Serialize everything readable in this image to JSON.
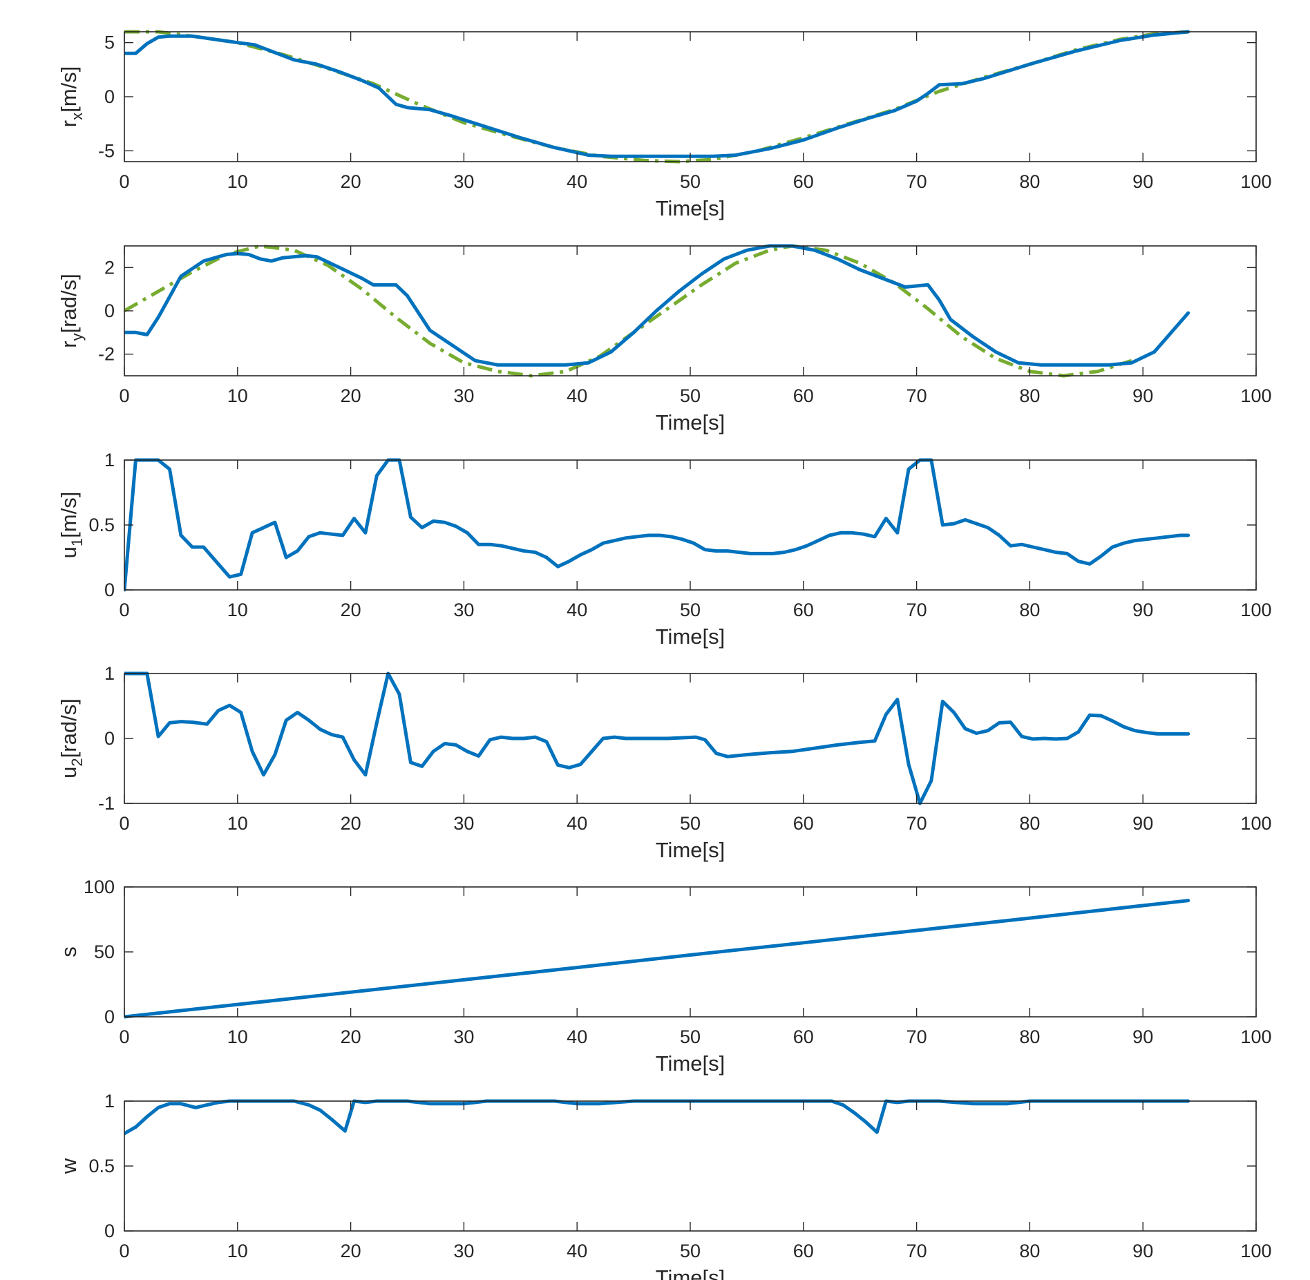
{
  "chart_data": [
    {
      "type": "line",
      "ylabel": {
        "base": "r",
        "sub": "x",
        "unit": "[m/s]"
      },
      "xlabel": "Time[s]",
      "xlim": [
        0,
        100
      ],
      "ylim": [
        -6,
        6
      ],
      "xticks": [
        0,
        10,
        20,
        30,
        40,
        50,
        60,
        70,
        80,
        90,
        100
      ],
      "yticks": [
        -5,
        0,
        5
      ],
      "colors": {
        "actual": "#0072BD",
        "reference": "#77AC30"
      },
      "series": [
        {
          "role": "actual",
          "style": "solid",
          "x": [
            0,
            1,
            2,
            3,
            4,
            6,
            8,
            10,
            11.5,
            13,
            15,
            17,
            19,
            21,
            22.5,
            24,
            25,
            27,
            29,
            32,
            35,
            38,
            41,
            43,
            46,
            49,
            52,
            54,
            57,
            60,
            63,
            66,
            68,
            70,
            71,
            72,
            74,
            76,
            80,
            84,
            88,
            91,
            94
          ],
          "y": [
            4,
            4,
            4.9,
            5.5,
            5.6,
            5.6,
            5.3,
            5.0,
            4.8,
            4.2,
            3.4,
            3.0,
            2.3,
            1.5,
            0.8,
            -0.7,
            -1.0,
            -1.2,
            -1.8,
            -2.8,
            -3.8,
            -4.7,
            -5.4,
            -5.5,
            -5.5,
            -5.5,
            -5.5,
            -5.4,
            -4.8,
            -4.0,
            -2.9,
            -1.9,
            -1.3,
            -0.4,
            0.3,
            1.1,
            1.2,
            1.7,
            3.0,
            4.2,
            5.2,
            5.7,
            6.0
          ]
        },
        {
          "role": "reference",
          "style": "dash-dot",
          "x": [
            0,
            3,
            6,
            10,
            14,
            18,
            22,
            26,
            30,
            34,
            38,
            42,
            46,
            49,
            52,
            56,
            60,
            64,
            68,
            72,
            76,
            80,
            84,
            88,
            91,
            94
          ],
          "y": [
            6,
            6,
            5.6,
            5.0,
            3.9,
            2.6,
            1.2,
            -0.7,
            -2.4,
            -3.6,
            -4.7,
            -5.5,
            -5.9,
            -6.0,
            -5.8,
            -5.0,
            -3.8,
            -2.5,
            -1.2,
            0.5,
            1.8,
            3.0,
            4.3,
            5.3,
            5.8,
            6.0
          ]
        }
      ]
    },
    {
      "type": "line",
      "ylabel": {
        "base": "r",
        "sub": "y",
        "unit": "[rad/s]"
      },
      "xlabel": "Time[s]",
      "xlim": [
        0,
        100
      ],
      "ylim": [
        -3,
        3
      ],
      "xticks": [
        0,
        10,
        20,
        30,
        40,
        50,
        60,
        70,
        80,
        90,
        100
      ],
      "yticks": [
        -2,
        0,
        2
      ],
      "colors": {
        "actual": "#0072BD",
        "reference": "#77AC30"
      },
      "series": [
        {
          "role": "actual",
          "style": "solid",
          "x": [
            0,
            1,
            2,
            3,
            5,
            7,
            9,
            10,
            11,
            12,
            13,
            14,
            16,
            17,
            19,
            21,
            22,
            23,
            24,
            25,
            27,
            29,
            31,
            33,
            35,
            37,
            39,
            41,
            43,
            45,
            47,
            49,
            51,
            53,
            55,
            57,
            59,
            61,
            63,
            65,
            67,
            69,
            71,
            72,
            73,
            75,
            77,
            79,
            81,
            83,
            85,
            87,
            89,
            91,
            94
          ],
          "y": [
            -1,
            -1,
            -1.1,
            -0.3,
            1.6,
            2.3,
            2.6,
            2.65,
            2.6,
            2.4,
            2.3,
            2.45,
            2.55,
            2.5,
            2.0,
            1.5,
            1.2,
            1.2,
            1.2,
            0.7,
            -0.9,
            -1.6,
            -2.3,
            -2.5,
            -2.5,
            -2.5,
            -2.5,
            -2.4,
            -1.9,
            -1.0,
            0.0,
            0.9,
            1.7,
            2.4,
            2.8,
            3.0,
            3.0,
            2.8,
            2.4,
            1.9,
            1.5,
            1.1,
            1.2,
            0.5,
            -0.4,
            -1.2,
            -1.9,
            -2.4,
            -2.5,
            -2.5,
            -2.5,
            -2.5,
            -2.4,
            -1.9,
            -0.1
          ]
        },
        {
          "role": "reference",
          "style": "dash-dot",
          "x": [
            0,
            3,
            6,
            9,
            12,
            15,
            18,
            21,
            24,
            27,
            30,
            33,
            36,
            39,
            42,
            45,
            48,
            51,
            54,
            57,
            59,
            62,
            65,
            68,
            71,
            74,
            77,
            80,
            83,
            86,
            89
          ],
          "y": [
            0,
            0.9,
            1.8,
            2.6,
            3.0,
            2.8,
            2.1,
            1.0,
            -0.3,
            -1.5,
            -2.4,
            -2.8,
            -3.0,
            -2.8,
            -2.1,
            -1.0,
            0.1,
            1.2,
            2.2,
            2.8,
            3.0,
            2.8,
            2.2,
            1.3,
            0.1,
            -1.2,
            -2.2,
            -2.8,
            -3.0,
            -2.8,
            -2.3
          ]
        }
      ]
    },
    {
      "type": "line",
      "ylabel": {
        "base": "u",
        "sub": "1",
        "unit": "[m/s]"
      },
      "xlabel": "Time[s]",
      "xlim": [
        0,
        100
      ],
      "ylim": [
        0,
        1
      ],
      "xticks": [
        0,
        10,
        20,
        30,
        40,
        50,
        60,
        70,
        80,
        90,
        100
      ],
      "yticks": [
        0,
        0.5,
        1
      ],
      "colors": {
        "actual": "#0072BD"
      },
      "series": [
        {
          "role": "actual",
          "style": "solid",
          "x": [
            0,
            1,
            2,
            3,
            4,
            5,
            6,
            7,
            8,
            9.3,
            10.3,
            11.3,
            12.3,
            13.3,
            14.3,
            15.3,
            16.3,
            17.3,
            18.3,
            19.3,
            20.3,
            21.3,
            22.3,
            23.3,
            24.3,
            25.3,
            26.3,
            27.3,
            28.3,
            29.3,
            30.3,
            31.3,
            32.3,
            33.3,
            34.3,
            35.3,
            36.3,
            37.3,
            38.3,
            39.3,
            40.3,
            41.3,
            42.3,
            43.3,
            44.3,
            45.3,
            46.3,
            47.3,
            48.3,
            49.3,
            50.3,
            51.3,
            52.3,
            53.3,
            54.3,
            55.3,
            56.3,
            57.3,
            58.3,
            59.3,
            60.3,
            61.3,
            62.3,
            63.3,
            64.3,
            65.3,
            66.3,
            67.3,
            68.3,
            69.3,
            70.3,
            71.3,
            72.3,
            73.3,
            74.3,
            75.3,
            76.3,
            77.3,
            78.3,
            79.3,
            80.3,
            81.3,
            82.3,
            83.3,
            84.3,
            85.3,
            86.3,
            87.3,
            88.3,
            89.3,
            90.3,
            91.3,
            92.3,
            93.3,
            94
          ],
          "y": [
            0,
            1,
            1,
            1,
            0.93,
            0.42,
            0.33,
            0.33,
            0.23,
            0.1,
            0.12,
            0.44,
            0.48,
            0.52,
            0.25,
            0.3,
            0.41,
            0.44,
            0.43,
            0.42,
            0.55,
            0.44,
            0.88,
            1,
            1,
            0.56,
            0.48,
            0.53,
            0.52,
            0.49,
            0.44,
            0.35,
            0.35,
            0.34,
            0.32,
            0.3,
            0.29,
            0.25,
            0.18,
            0.22,
            0.27,
            0.31,
            0.36,
            0.38,
            0.4,
            0.41,
            0.42,
            0.42,
            0.41,
            0.39,
            0.36,
            0.31,
            0.3,
            0.3,
            0.29,
            0.28,
            0.28,
            0.28,
            0.29,
            0.31,
            0.34,
            0.38,
            0.42,
            0.44,
            0.44,
            0.43,
            0.41,
            0.55,
            0.44,
            0.93,
            1,
            1,
            0.5,
            0.51,
            0.54,
            0.51,
            0.48,
            0.42,
            0.34,
            0.35,
            0.33,
            0.31,
            0.29,
            0.28,
            0.22,
            0.2,
            0.26,
            0.33,
            0.36,
            0.38,
            0.39,
            0.4,
            0.41,
            0.42,
            0.42
          ]
        }
      ]
    },
    {
      "type": "line",
      "ylabel": {
        "base": "u",
        "sub": "2",
        "unit": "[rad/s]"
      },
      "xlabel": "Time[s]",
      "xlim": [
        0,
        100
      ],
      "ylim": [
        -1,
        1
      ],
      "xticks": [
        0,
        10,
        20,
        30,
        40,
        50,
        60,
        70,
        80,
        90,
        100
      ],
      "yticks": [
        -1,
        0,
        1
      ],
      "colors": {
        "actual": "#0072BD"
      },
      "series": [
        {
          "role": "actual",
          "style": "solid",
          "x": [
            0,
            1,
            2,
            3,
            4,
            5,
            6,
            7.3,
            8.3,
            9.3,
            10.3,
            11.3,
            12.3,
            13.3,
            14.3,
            15.3,
            16.3,
            17.3,
            18.3,
            19.3,
            20.3,
            21.3,
            22.3,
            23.3,
            24.3,
            25.3,
            26.3,
            27.3,
            28.3,
            29.3,
            30.3,
            31.3,
            32.3,
            33.3,
            34.3,
            35.3,
            36.3,
            37.3,
            38.3,
            39.3,
            40.3,
            41.3,
            42.3,
            43.3,
            44.3,
            48,
            50.5,
            51.3,
            52.3,
            53.3,
            55,
            57,
            59,
            61,
            63,
            65,
            66.3,
            67.3,
            68.3,
            69.3,
            70.3,
            71.3,
            72.3,
            73.3,
            74.3,
            75.3,
            76.3,
            77.3,
            78.3,
            79.3,
            80.3,
            81.3,
            82.3,
            83.3,
            84.3,
            85.3,
            86.3,
            87.3,
            88.3,
            89.3,
            90.3,
            91.3,
            92.3,
            93.3,
            94
          ],
          "y": [
            1,
            1,
            1,
            0.03,
            0.24,
            0.26,
            0.25,
            0.22,
            0.43,
            0.51,
            0.4,
            -0.2,
            -0.56,
            -0.25,
            0.28,
            0.4,
            0.28,
            0.14,
            0.06,
            0.02,
            -0.33,
            -0.56,
            0.24,
            1,
            0.68,
            -0.37,
            -0.43,
            -0.2,
            -0.08,
            -0.1,
            -0.2,
            -0.27,
            -0.02,
            0.02,
            0.0,
            0.0,
            0.02,
            -0.05,
            -0.41,
            -0.45,
            -0.4,
            -0.2,
            0.0,
            0.02,
            0.0,
            0.0,
            0.02,
            -0.02,
            -0.23,
            -0.28,
            -0.25,
            -0.22,
            -0.2,
            -0.15,
            -0.1,
            -0.06,
            -0.04,
            0.37,
            0.6,
            -0.4,
            -1,
            -0.65,
            0.57,
            0.4,
            0.15,
            0.08,
            0.12,
            0.24,
            0.25,
            0.03,
            -0.01,
            0.0,
            -0.01,
            0.0,
            0.1,
            0.36,
            0.35,
            0.27,
            0.18,
            0.12,
            0.09,
            0.07,
            0.07,
            0.07,
            0.07
          ]
        }
      ]
    },
    {
      "type": "line",
      "ylabel": {
        "base": "s",
        "sub": "",
        "unit": ""
      },
      "xlabel": "Time[s]",
      "xlim": [
        0,
        100
      ],
      "ylim": [
        0,
        100
      ],
      "xticks": [
        0,
        10,
        20,
        30,
        40,
        50,
        60,
        70,
        80,
        90,
        100
      ],
      "yticks": [
        0,
        50,
        100
      ],
      "colors": {
        "actual": "#0072BD"
      },
      "series": [
        {
          "role": "actual",
          "style": "solid",
          "x": [
            0,
            10,
            20,
            30,
            40,
            50,
            60,
            70,
            80,
            94
          ],
          "y": [
            0,
            9.5,
            19,
            28.5,
            38,
            47.6,
            57,
            66.5,
            76,
            89.5
          ]
        }
      ]
    },
    {
      "type": "line",
      "ylabel": {
        "base": "w",
        "sub": "",
        "unit": ""
      },
      "xlabel": "Time[s]",
      "xlim": [
        0,
        100
      ],
      "ylim": [
        0,
        1
      ],
      "xticks": [
        0,
        10,
        20,
        30,
        40,
        50,
        60,
        70,
        80,
        90,
        100
      ],
      "yticks": [
        0,
        0.5,
        1
      ],
      "colors": {
        "actual": "#0072BD"
      },
      "series": [
        {
          "role": "actual",
          "style": "solid",
          "x": [
            0,
            1,
            2,
            3,
            4,
            5,
            6.3,
            7.3,
            8.3,
            9.3,
            10.3,
            15,
            16.3,
            17.3,
            18.3,
            19.5,
            20.3,
            21.3,
            22.3,
            25,
            27,
            30,
            32,
            35,
            38,
            40,
            42,
            45,
            50,
            55,
            60,
            62.5,
            63.5,
            64.5,
            65.5,
            66.5,
            67.3,
            68.3,
            69.3,
            72,
            75,
            78,
            80,
            85,
            90,
            94
          ],
          "y": [
            0.75,
            0.8,
            0.88,
            0.95,
            0.98,
            0.98,
            0.95,
            0.97,
            0.99,
            1,
            1,
            1,
            0.97,
            0.93,
            0.86,
            0.77,
            1,
            0.99,
            1,
            1,
            0.98,
            0.98,
            1,
            1,
            1,
            0.98,
            0.98,
            1,
            1,
            1,
            1,
            1,
            0.97,
            0.91,
            0.84,
            0.76,
            1,
            0.99,
            1,
            1,
            0.98,
            0.98,
            1,
            1,
            1,
            1
          ]
        }
      ]
    }
  ]
}
